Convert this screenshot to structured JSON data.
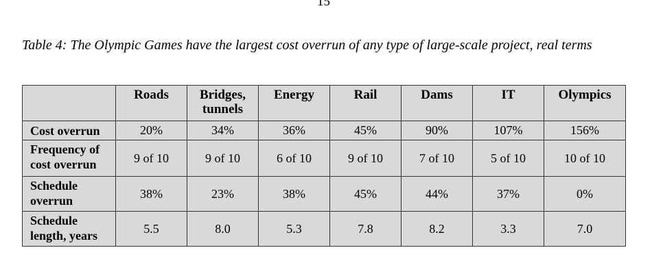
{
  "page_number": "15",
  "caption": "Table 4: The Olympic Games have the largest cost overrun of any type of large-scale project, real terms",
  "table": {
    "columns": [
      "",
      "Roads",
      "Bridges, tunnels",
      "Energy",
      "Rail",
      "Dams",
      "IT",
      "Olympics"
    ],
    "rows": [
      {
        "label": "Cost overrun",
        "values": [
          "20%",
          "34%",
          "36%",
          "45%",
          "90%",
          "107%",
          "156%"
        ]
      },
      {
        "label": "Frequency of cost overrun",
        "values": [
          "9 of 10",
          "9 of 10",
          "6 of 10",
          "9 of 10",
          "7 of 10",
          "5 of 10",
          "10 of 10"
        ]
      },
      {
        "label": "Schedule overrun",
        "values": [
          "38%",
          "23%",
          "38%",
          "45%",
          "44%",
          "37%",
          "0%"
        ]
      },
      {
        "label": "Schedule length, years",
        "values": [
          "5.5",
          "8.0",
          "5.3",
          "7.8",
          "8.2",
          "3.3",
          "7.0"
        ]
      }
    ]
  }
}
